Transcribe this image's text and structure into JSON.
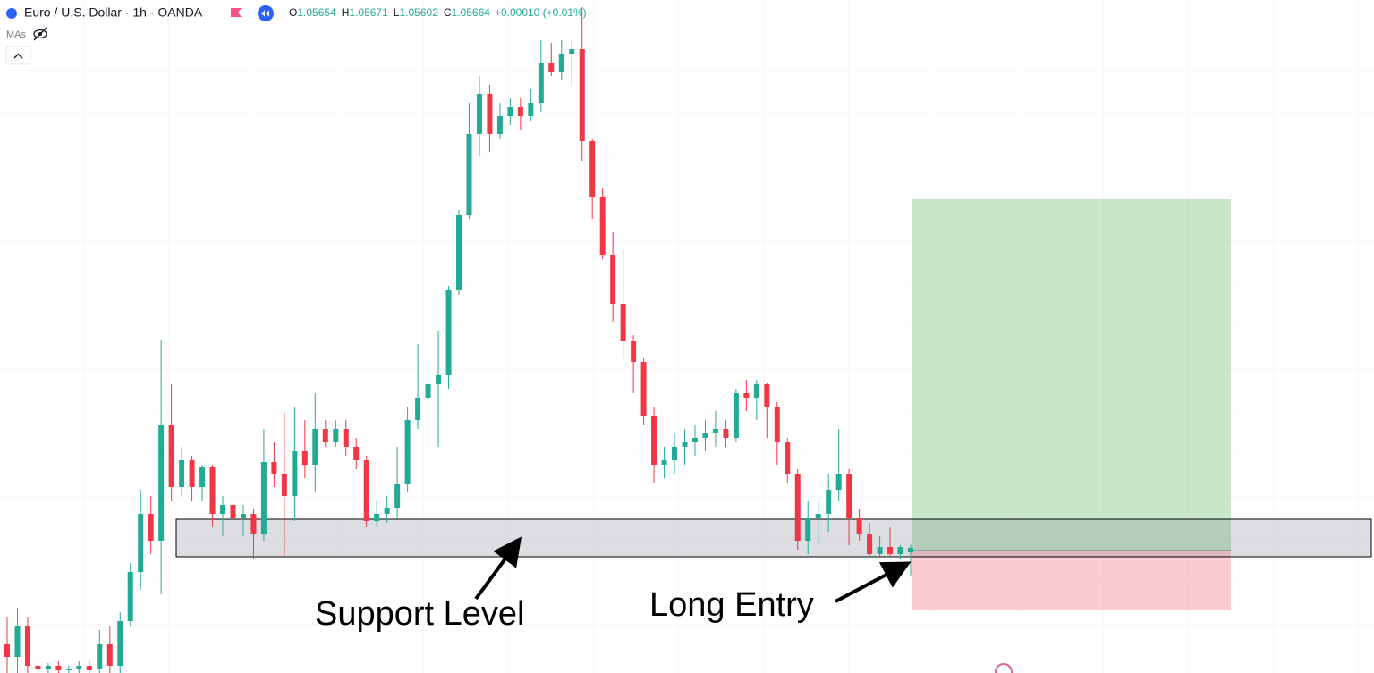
{
  "chart_data": {
    "type": "candlestick",
    "title": "Euro / U.S. Dollar · 1h · OANDA",
    "ohlc_labels": [
      "O",
      "H",
      "L",
      "C"
    ],
    "change": "+0.00010 (+0.01%)",
    "indicator_label": "MAs",
    "up_color": "#22ab94",
    "down_color": "#f23645",
    "grid": true,
    "ylim": [
      1.05384,
      1.0689
    ],
    "candles": [
      [
        1.0545,
        1.0551,
        1.05384,
        1.0542
      ],
      [
        1.0542,
        1.0553,
        1.05384,
        1.0549
      ],
      [
        1.0549,
        1.0551,
        1.05384,
        1.054
      ],
      [
        1.054,
        1.0541,
        1.05384,
        1.05394
      ],
      [
        1.05394,
        1.05406,
        1.05384,
        1.054
      ],
      [
        1.054,
        1.0541,
        1.05384,
        1.0539
      ],
      [
        1.0539,
        1.054,
        1.05384,
        1.05394
      ],
      [
        1.05394,
        1.0541,
        1.05384,
        1.054
      ],
      [
        1.054,
        1.05414,
        1.05384,
        1.0539
      ],
      [
        1.05394,
        1.0548,
        1.05384,
        1.0545
      ],
      [
        1.0545,
        1.0549,
        1.05384,
        1.054
      ],
      [
        1.054,
        1.0552,
        1.05384,
        1.055
      ],
      [
        1.055,
        1.0563,
        1.0549,
        1.0561
      ],
      [
        1.0561,
        1.05794,
        1.0557,
        1.0574
      ],
      [
        1.0574,
        1.0578,
        1.0565,
        1.0568
      ],
      [
        1.0568,
        1.0613,
        1.0556,
        1.0594
      ],
      [
        1.0594,
        1.0603,
        1.0577,
        1.058
      ],
      [
        1.058,
        1.0589,
        1.0578,
        1.0586
      ],
      [
        1.0586,
        1.0587,
        1.0577,
        1.058
      ],
      [
        1.058,
        1.0585,
        1.0577,
        1.05846
      ],
      [
        1.05846,
        1.0585,
        1.0571,
        1.0574
      ],
      [
        1.0574,
        1.0578,
        1.0569,
        1.0576
      ],
      [
        1.0576,
        1.0577,
        1.0569,
        1.0573
      ],
      [
        1.0573,
        1.0576,
        1.0569,
        1.0574
      ],
      [
        1.0574,
        1.0575,
        1.0564,
        1.05694
      ],
      [
        1.05694,
        1.0593,
        1.0568,
        1.05856
      ],
      [
        1.05856,
        1.059,
        1.058,
        1.0583
      ],
      [
        1.0583,
        1.05966,
        1.05644,
        1.0578
      ],
      [
        1.0578,
        1.0598,
        1.05724,
        1.0588
      ],
      [
        1.0588,
        1.0595,
        1.0582,
        1.0585
      ],
      [
        1.0585,
        1.0601,
        1.0579,
        1.0593
      ],
      [
        1.0593,
        1.0595,
        1.0589,
        1.059
      ],
      [
        1.059,
        1.0595,
        1.0589,
        1.0593
      ],
      [
        1.0593,
        1.0595,
        1.0587,
        1.0589
      ],
      [
        1.0589,
        1.0591,
        1.0584,
        1.0586
      ],
      [
        1.0586,
        1.0587,
        1.0571,
        1.05724
      ],
      [
        1.05724,
        1.0577,
        1.0571,
        1.0574
      ],
      [
        1.0574,
        1.0578,
        1.0572,
        1.05754
      ],
      [
        1.05754,
        1.0589,
        1.0573,
        1.05806
      ],
      [
        1.05806,
        1.0598,
        1.0579,
        1.0595
      ],
      [
        1.0595,
        1.0612,
        1.0593,
        1.06
      ],
      [
        1.06,
        1.0609,
        1.0589,
        1.0603
      ],
      [
        1.0603,
        1.0615,
        1.0589,
        1.0605
      ],
      [
        1.0605,
        1.0625,
        1.0602,
        1.0624
      ],
      [
        1.0624,
        1.0642,
        1.0623,
        1.0641
      ],
      [
        1.0641,
        1.0666,
        1.064,
        1.0659
      ],
      [
        1.0659,
        1.0672,
        1.0654,
        1.0668
      ],
      [
        1.0668,
        1.067,
        1.0655,
        1.0659
      ],
      [
        1.0659,
        1.0666,
        1.0658,
        1.0663
      ],
      [
        1.0663,
        1.0667,
        1.0661,
        1.0665
      ],
      [
        1.0665,
        1.0667,
        1.066,
        1.0663
      ],
      [
        1.0663,
        1.0669,
        1.0662,
        1.0666
      ],
      [
        1.0666,
        1.068,
        1.0664,
        1.0675
      ],
      [
        1.0675,
        1.06794,
        1.0672,
        1.0673
      ],
      [
        1.0673,
        1.068,
        1.0671,
        1.0677
      ],
      [
        1.0677,
        1.068,
        1.067,
        1.0678
      ],
      [
        1.0678,
        1.06874,
        1.0653,
        1.06574
      ],
      [
        1.06574,
        1.0658,
        1.064,
        1.0645
      ],
      [
        1.0645,
        1.0647,
        1.0631,
        1.0632
      ],
      [
        1.0632,
        1.0637,
        1.0617,
        1.0621
      ],
      [
        1.0621,
        1.0633,
        1.0609,
        1.06126
      ],
      [
        1.06126,
        1.0614,
        1.0601,
        1.0608
      ],
      [
        1.0608,
        1.0609,
        1.0594,
        1.0596
      ],
      [
        1.0596,
        1.0598,
        1.0581,
        1.0585
      ],
      [
        1.0585,
        1.0589,
        1.0582,
        1.0586
      ],
      [
        1.0586,
        1.0592,
        1.0583,
        1.0589
      ],
      [
        1.0589,
        1.0593,
        1.0585,
        1.059
      ],
      [
        1.059,
        1.0594,
        1.0587,
        1.0591
      ],
      [
        1.0591,
        1.0595,
        1.0588,
        1.0592
      ],
      [
        1.0592,
        1.0597,
        1.0589,
        1.0593
      ],
      [
        1.0593,
        1.0595,
        1.0589,
        1.0591
      ],
      [
        1.0591,
        1.0602,
        1.059,
        1.0601
      ],
      [
        1.0601,
        1.0604,
        1.0597,
        1.06
      ],
      [
        1.06,
        1.0604,
        1.0595,
        1.0603
      ],
      [
        1.0603,
        1.06034,
        1.0591,
        1.0598
      ],
      [
        1.0598,
        1.0599,
        1.0585,
        1.059
      ],
      [
        1.059,
        1.0591,
        1.0581,
        1.0583
      ],
      [
        1.0583,
        1.0584,
        1.0566,
        1.0568
      ],
      [
        1.0568,
        1.0577,
        1.0565,
        1.0573
      ],
      [
        1.0573,
        1.0577,
        1.0567,
        1.0574
      ],
      [
        1.0574,
        1.0583,
        1.057,
        1.05794
      ],
      [
        1.05794,
        1.0593,
        1.0577,
        1.0583
      ],
      [
        1.0583,
        1.0584,
        1.0567,
        1.0573
      ],
      [
        1.0573,
        1.0575,
        1.0568,
        1.05694
      ],
      [
        1.05694,
        1.0572,
        1.05646,
        1.0565
      ],
      [
        1.0565,
        1.0569,
        1.05646,
        1.05666
      ],
      [
        1.05666,
        1.0571,
        1.05646,
        1.0565
      ],
      [
        1.0565,
        1.0567,
        1.0564,
        1.05666
      ],
      [
        1.05654,
        1.05671,
        1.05602,
        1.05664
      ]
    ],
    "support_zone": [
      1.05644,
      1.05728
    ],
    "position": {
      "entry": 1.05658,
      "target": 1.06444,
      "stop": 1.05524
    },
    "annotations": [
      "Support Level",
      "Long Entry"
    ]
  }
}
